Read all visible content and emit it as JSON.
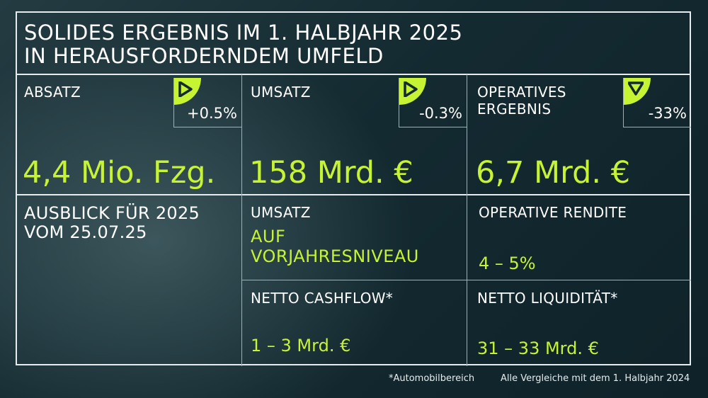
{
  "title": {
    "line1": "SOLIDES ERGEBNIS IM 1. HALBJAHR 2025",
    "line2": "IN HERAUSFORDERNDEM UMFELD"
  },
  "kpis": [
    {
      "label": "ABSATZ",
      "value": "4,4 Mio. Fzg.",
      "change": "+0.5%",
      "direction": "right-arrow-icon"
    },
    {
      "label": "UMSATZ",
      "value": "158 Mrd. €",
      "change": "-0.3%",
      "direction": "right-arrow-icon"
    },
    {
      "label_line1": "OPERATIVES",
      "label_line2": "ERGEBNIS",
      "value": "6,7 Mrd. €",
      "change": "-33%",
      "direction": "down-arrow-icon"
    }
  ],
  "outlook": {
    "title_line1": "AUSBLICK FÜR 2025",
    "title_line2": "VOM 25.07.25",
    "umsatz": {
      "label": "UMSATZ",
      "value_line1": "AUF",
      "value_line2": "VORJAHRESNIVEAU"
    },
    "rendite": {
      "label": "OPERATIVE RENDITE",
      "value": "4 – 5%"
    },
    "cashflow": {
      "label": "NETTO CASHFLOW*",
      "value": "1 – 3 Mrd. €"
    },
    "liquiditaet": {
      "label": "NETTO LIQUIDITÄT*",
      "value": "31 – 33 Mrd. €"
    }
  },
  "footer": {
    "footnote": "*Automobilbereich",
    "comparison": "Alle Vergleiche mit dem 1. Halbjahr 2024"
  },
  "colors": {
    "accent": "#c6f432",
    "background": "#142a31",
    "lines": "#e6ecec"
  }
}
